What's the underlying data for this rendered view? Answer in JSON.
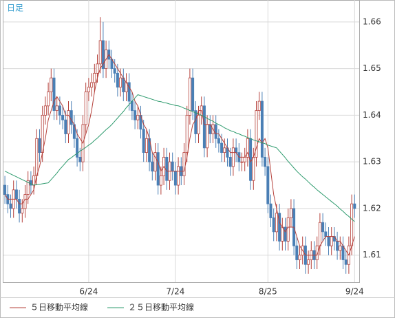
{
  "chart_data": {
    "type": "candlestick",
    "title": "日足",
    "categories": [
      null,
      null,
      null,
      null,
      null,
      null,
      null,
      null,
      null,
      null,
      null,
      null,
      null,
      null,
      null,
      null,
      null,
      null,
      null,
      null,
      null,
      null,
      null,
      null,
      null,
      null,
      null,
      null,
      null,
      "6/24",
      null,
      null,
      null,
      null,
      null,
      null,
      null,
      null,
      null,
      null,
      null,
      null,
      null,
      null,
      null,
      null,
      null,
      null,
      null,
      null,
      null,
      null,
      null,
      null,
      null,
      null,
      null,
      null,
      null,
      "7/24",
      null,
      null,
      null,
      null,
      null,
      null,
      null,
      null,
      null,
      null,
      null,
      null,
      null,
      null,
      null,
      null,
      null,
      null,
      null,
      null,
      null,
      null,
      null,
      null,
      null,
      null,
      null,
      null,
      null,
      null,
      null,
      "8/25",
      null,
      null,
      null,
      null,
      null,
      null,
      null,
      null,
      null,
      null,
      null,
      null,
      null,
      null,
      null,
      null,
      null,
      null,
      null,
      null,
      null,
      null,
      null,
      null,
      null,
      null,
      null,
      null,
      null,
      "9/24"
    ],
    "open": [
      1.625,
      1.623,
      1.621,
      1.62,
      1.624,
      1.622,
      1.619,
      1.62,
      1.623,
      1.626,
      1.625,
      1.627,
      1.635,
      1.632,
      1.64,
      1.642,
      1.645,
      1.648,
      1.641,
      1.642,
      1.64,
      1.639,
      1.636,
      1.641,
      1.638,
      1.635,
      1.631,
      1.63,
      1.638,
      1.645,
      1.646,
      1.647,
      1.649,
      1.651,
      1.656,
      1.65,
      1.654,
      1.652,
      1.65,
      1.649,
      1.646,
      1.648,
      1.645,
      1.647,
      1.643,
      1.641,
      1.639,
      1.64,
      1.637,
      1.632,
      1.635,
      1.63,
      1.628,
      1.632,
      1.625,
      1.627,
      1.631,
      1.626,
      1.63,
      1.628,
      1.625,
      1.629,
      1.627,
      1.632,
      1.64,
      1.648,
      1.641,
      1.636,
      1.64,
      1.642,
      1.633,
      1.638,
      1.636,
      1.638,
      1.635,
      1.634,
      1.632,
      1.633,
      1.631,
      1.629,
      1.633,
      1.632,
      1.63,
      1.63,
      1.631,
      1.635,
      1.626,
      1.631,
      1.641,
      1.643,
      1.631,
      1.629,
      1.621,
      1.618,
      1.615,
      1.619,
      1.613,
      1.616,
      1.613,
      1.618,
      1.62,
      1.612,
      1.609,
      1.61,
      1.612,
      1.608,
      1.609,
      1.611,
      1.609,
      1.612,
      1.617,
      1.615,
      1.614,
      1.612,
      1.614,
      1.613,
      1.611,
      1.612,
      1.609,
      1.608,
      1.612,
      1.621
    ],
    "high": [
      1.627,
      1.625,
      1.623,
      1.626,
      1.626,
      1.624,
      1.622,
      1.625,
      1.628,
      1.628,
      1.629,
      1.637,
      1.637,
      1.642,
      1.644,
      1.647,
      1.65,
      1.65,
      1.644,
      1.644,
      1.642,
      1.641,
      1.643,
      1.643,
      1.64,
      1.637,
      1.633,
      1.64,
      1.647,
      1.648,
      1.649,
      1.651,
      1.653,
      1.661,
      1.66,
      1.656,
      1.656,
      1.654,
      1.652,
      1.651,
      1.65,
      1.65,
      1.649,
      1.649,
      1.645,
      1.643,
      1.642,
      1.642,
      1.639,
      1.637,
      1.637,
      1.632,
      1.634,
      1.634,
      1.629,
      1.633,
      1.633,
      1.632,
      1.632,
      1.63,
      1.631,
      1.631,
      1.634,
      1.642,
      1.65,
      1.65,
      1.643,
      1.642,
      1.644,
      1.644,
      1.64,
      1.64,
      1.64,
      1.64,
      1.637,
      1.636,
      1.635,
      1.635,
      1.633,
      1.635,
      1.635,
      1.634,
      1.632,
      1.633,
      1.637,
      1.637,
      1.633,
      1.643,
      1.645,
      1.645,
      1.633,
      1.631,
      1.623,
      1.62,
      1.621,
      1.621,
      1.618,
      1.618,
      1.62,
      1.622,
      1.622,
      1.614,
      1.612,
      1.614,
      1.614,
      1.611,
      1.613,
      1.613,
      1.614,
      1.619,
      1.619,
      1.617,
      1.616,
      1.616,
      1.616,
      1.615,
      1.614,
      1.614,
      1.611,
      1.614,
      1.623,
      1.623
    ],
    "low": [
      1.621,
      1.619,
      1.618,
      1.618,
      1.62,
      1.617,
      1.617,
      1.618,
      1.621,
      1.623,
      1.623,
      1.625,
      1.63,
      1.63,
      1.638,
      1.64,
      1.643,
      1.639,
      1.639,
      1.638,
      1.637,
      1.634,
      1.634,
      1.636,
      1.633,
      1.629,
      1.628,
      1.628,
      1.636,
      1.643,
      1.644,
      1.645,
      1.647,
      1.649,
      1.648,
      1.648,
      1.65,
      1.648,
      1.647,
      1.644,
      1.644,
      1.643,
      1.643,
      1.641,
      1.639,
      1.637,
      1.637,
      1.635,
      1.63,
      1.63,
      1.628,
      1.626,
      1.626,
      1.623,
      1.623,
      1.625,
      1.624,
      1.624,
      1.626,
      1.623,
      1.623,
      1.625,
      1.625,
      1.63,
      1.638,
      1.639,
      1.634,
      1.634,
      1.638,
      1.631,
      1.631,
      1.634,
      1.634,
      1.633,
      1.632,
      1.63,
      1.63,
      1.629,
      1.627,
      1.627,
      1.63,
      1.628,
      1.628,
      1.628,
      1.629,
      1.624,
      1.624,
      1.629,
      1.639,
      1.629,
      1.627,
      1.619,
      1.616,
      1.613,
      1.613,
      1.611,
      1.611,
      1.611,
      1.611,
      1.616,
      1.61,
      1.607,
      1.607,
      1.608,
      1.606,
      1.606,
      1.607,
      1.607,
      1.607,
      1.61,
      1.613,
      1.612,
      1.61,
      1.61,
      1.611,
      1.609,
      1.609,
      1.607,
      1.606,
      1.606,
      1.61,
      1.618
    ],
    "close": [
      1.623,
      1.621,
      1.62,
      1.624,
      1.622,
      1.619,
      1.62,
      1.623,
      1.626,
      1.625,
      1.627,
      1.635,
      1.632,
      1.64,
      1.642,
      1.645,
      1.648,
      1.641,
      1.642,
      1.64,
      1.639,
      1.636,
      1.641,
      1.638,
      1.635,
      1.631,
      1.63,
      1.638,
      1.645,
      1.646,
      1.647,
      1.649,
      1.651,
      1.656,
      1.65,
      1.654,
      1.652,
      1.65,
      1.649,
      1.646,
      1.648,
      1.645,
      1.647,
      1.643,
      1.641,
      1.639,
      1.64,
      1.637,
      1.632,
      1.635,
      1.63,
      1.628,
      1.632,
      1.625,
      1.627,
      1.631,
      1.626,
      1.63,
      1.628,
      1.625,
      1.629,
      1.627,
      1.632,
      1.64,
      1.648,
      1.641,
      1.636,
      1.64,
      1.642,
      1.633,
      1.638,
      1.636,
      1.638,
      1.635,
      1.634,
      1.632,
      1.633,
      1.631,
      1.629,
      1.633,
      1.632,
      1.63,
      1.63,
      1.631,
      1.635,
      1.626,
      1.631,
      1.641,
      1.643,
      1.631,
      1.629,
      1.621,
      1.618,
      1.615,
      1.619,
      1.613,
      1.616,
      1.613,
      1.618,
      1.62,
      1.612,
      1.609,
      1.61,
      1.612,
      1.608,
      1.609,
      1.611,
      1.609,
      1.612,
      1.617,
      1.615,
      1.614,
      1.612,
      1.614,
      1.613,
      1.611,
      1.612,
      1.609,
      1.608,
      1.612,
      1.621,
      1.62
    ],
    "up_color": "#b5403a",
    "down_color": "#4a7fb5",
    "series": [
      {
        "name": "５日移動平均線",
        "color": "#b5403a",
        "values": [
          1.623,
          1.622,
          1.622,
          1.622,
          1.622,
          1.621,
          1.621,
          1.622,
          1.622,
          1.623,
          1.624,
          1.627,
          1.629,
          1.632,
          1.635,
          1.639,
          1.641,
          1.643,
          1.644,
          1.643,
          1.642,
          1.64,
          1.64,
          1.639,
          1.638,
          1.636,
          1.635,
          1.634,
          1.636,
          1.638,
          1.641,
          1.645,
          1.648,
          1.65,
          1.651,
          1.652,
          1.653,
          1.652,
          1.651,
          1.65,
          1.649,
          1.648,
          1.647,
          1.646,
          1.645,
          1.643,
          1.642,
          1.64,
          1.638,
          1.637,
          1.635,
          1.632,
          1.631,
          1.63,
          1.628,
          1.629,
          1.628,
          1.628,
          1.628,
          1.628,
          1.628,
          1.628,
          1.628,
          1.631,
          1.635,
          1.638,
          1.639,
          1.641,
          1.641,
          1.638,
          1.638,
          1.638,
          1.637,
          1.636,
          1.636,
          1.635,
          1.634,
          1.633,
          1.632,
          1.632,
          1.632,
          1.631,
          1.631,
          1.631,
          1.632,
          1.63,
          1.631,
          1.633,
          1.635,
          1.634,
          1.635,
          1.633,
          1.628,
          1.623,
          1.62,
          1.617,
          1.616,
          1.615,
          1.616,
          1.616,
          1.616,
          1.614,
          1.612,
          1.611,
          1.61,
          1.61,
          1.61,
          1.61,
          1.61,
          1.612,
          1.613,
          1.614,
          1.614,
          1.614,
          1.614,
          1.613,
          1.613,
          1.612,
          1.611,
          1.61,
          1.612,
          1.614
        ]
      },
      {
        "name": "２５日移動平均線",
        "color": "#2e9b6e",
        "values": [
          1.628,
          1.6277,
          1.6274,
          1.6271,
          1.6268,
          1.6265,
          1.6262,
          1.6259,
          1.6256,
          1.6253,
          1.625,
          1.6251,
          1.6252,
          1.6253,
          1.6254,
          1.6255,
          1.6262,
          1.6269,
          1.6276,
          1.6284,
          1.6291,
          1.6298,
          1.6305,
          1.6309,
          1.6314,
          1.6318,
          1.6323,
          1.6327,
          1.6331,
          1.6336,
          1.634,
          1.6346,
          1.6351,
          1.6357,
          1.6363,
          1.6369,
          1.6374,
          1.638,
          1.6387,
          1.6394,
          1.6401,
          1.6408,
          1.6416,
          1.6423,
          1.643,
          1.6437,
          1.6444,
          1.6442,
          1.644,
          1.6438,
          1.6436,
          1.6434,
          1.6432,
          1.643,
          1.6429,
          1.6427,
          1.6426,
          1.6424,
          1.6423,
          1.6421,
          1.642,
          1.6418,
          1.6415,
          1.6413,
          1.641,
          1.6408,
          1.6405,
          1.6403,
          1.64,
          1.6397,
          1.6393,
          1.639,
          1.6387,
          1.6383,
          1.638,
          1.6377,
          1.6373,
          1.637,
          1.6367,
          1.6365,
          1.6362,
          1.636,
          1.6357,
          1.6355,
          1.6352,
          1.635,
          1.6347,
          1.6345,
          1.6343,
          1.6341,
          1.6339,
          1.6336,
          1.6334,
          1.6332,
          1.633,
          1.6323,
          1.6316,
          1.6309,
          1.6301,
          1.6294,
          1.6287,
          1.628,
          1.6274,
          1.6268,
          1.6263,
          1.6257,
          1.6251,
          1.6246,
          1.624,
          1.6235,
          1.623,
          1.6225,
          1.622,
          1.6215,
          1.621,
          1.6205,
          1.6199,
          1.6194,
          1.6188,
          1.6183,
          1.6177,
          1.6172
        ]
      }
    ],
    "ylim": [
      1.6042,
      1.6647
    ],
    "yticks": [
      1.61,
      1.62,
      1.63,
      1.64,
      1.65,
      1.66
    ],
    "grid": true
  }
}
